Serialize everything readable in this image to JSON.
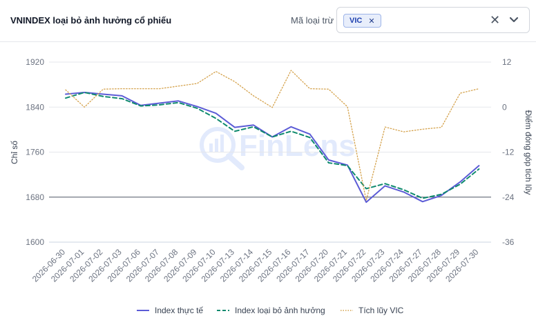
{
  "header": {
    "title": "VNINDEX loại bỏ ảnh hưởng cổ phiếu",
    "filter_label": "Mã loại trừ",
    "selected_tag": "VIC",
    "tag_remove_glyph": "✕",
    "clear_glyph": "✕",
    "dropdown_icon": "chevron-down-icon"
  },
  "watermark": "FinLens",
  "chart_data": {
    "type": "line",
    "x": [
      "2026-06-30",
      "2026-07-01",
      "2026-07-02",
      "2026-07-03",
      "2026-07-06",
      "2026-07-07",
      "2026-07-08",
      "2026-07-09",
      "2026-07-10",
      "2026-07-13",
      "2026-07-14",
      "2026-07-15",
      "2026-07-16",
      "2026-07-17",
      "2026-07-20",
      "2026-07-21",
      "2026-07-22",
      "2026-07-23",
      "2026-07-24",
      "2026-07-27",
      "2026-07-28",
      "2026-07-29",
      "2026-07-30"
    ],
    "ylabel": "Chỉ số",
    "y2label": "Điểm đóng góp tích lũy",
    "ylim": [
      1600,
      1920
    ],
    "y_ticks": [
      1600,
      1680,
      1760,
      1840,
      1920
    ],
    "y2lim": [
      -36,
      12
    ],
    "y2_ticks": [
      -36,
      -24,
      -12,
      0,
      12
    ],
    "grid": true,
    "legend_position": "bottom",
    "series": [
      {
        "name": "Index thực tế",
        "axis": "left",
        "style": "solid",
        "color": "#5b5bd6",
        "values": [
          1863,
          1866,
          1863,
          1860,
          1843,
          1847,
          1851,
          1841,
          1829,
          1804,
          1808,
          1787,
          1805,
          1792,
          1746,
          1737,
          1671,
          1700,
          1689,
          1672,
          1683,
          1707,
          1736
        ]
      },
      {
        "name": "Index loại bỏ ảnh hưởng",
        "axis": "left",
        "style": "dashed",
        "color": "#0f8a6e",
        "values": [
          1856,
          1866,
          1859,
          1855,
          1842,
          1844,
          1848,
          1838,
          1820,
          1797,
          1805,
          1787,
          1797,
          1786,
          1741,
          1736,
          1695,
          1704,
          1693,
          1678,
          1685,
          1703,
          1730
        ]
      },
      {
        "name": "Tích lũy VIC",
        "axis": "right",
        "style": "dotted",
        "color": "#d4a14a",
        "values": [
          4.6,
          0.0,
          4.8,
          4.9,
          4.9,
          4.9,
          5.6,
          6.3,
          9.5,
          6.8,
          3.0,
          -0.1,
          9.8,
          4.9,
          4.8,
          0.1,
          -24.9,
          -5.3,
          -6.6,
          -5.9,
          -5.4,
          3.7,
          4.9
        ]
      }
    ]
  }
}
